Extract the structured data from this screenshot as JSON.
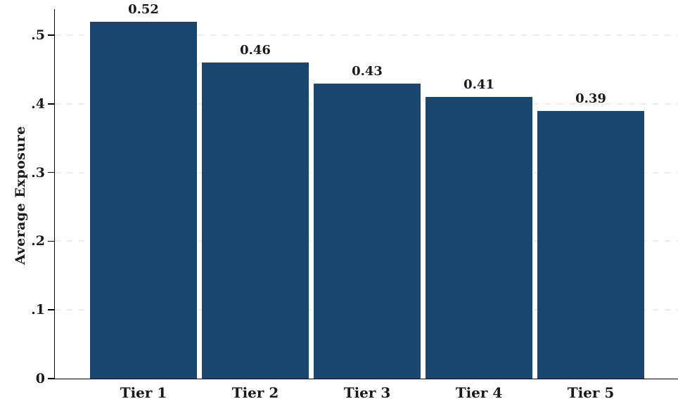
{
  "chart_data": {
    "type": "bar",
    "title": "",
    "categories": [
      "Tier 1",
      "Tier 2",
      "Tier 3",
      "Tier 4",
      "Tier 5"
    ],
    "values": [
      0.52,
      0.46,
      0.43,
      0.41,
      0.39
    ],
    "bar_value_labels": [
      "0.52",
      "0.46",
      "0.43",
      "0.41",
      "0.39"
    ],
    "xlabel": "",
    "ylabel": "Average Exposure",
    "ylim": [
      0,
      0.54
    ],
    "yticks": [
      {
        "value": 0.0,
        "label": "0"
      },
      {
        "value": 0.1,
        "label": ".1"
      },
      {
        "value": 0.2,
        "label": ".2"
      },
      {
        "value": 0.3,
        "label": ".3"
      },
      {
        "value": 0.4,
        "label": ".4"
      },
      {
        "value": 0.5,
        "label": ".5"
      }
    ],
    "grid": "horizontal-dashed",
    "legend": "none",
    "colors": {
      "bar_fill": "#1a476f",
      "gridline": "#ececec",
      "axis": "#000000",
      "text": "#1a1a1a",
      "background": "#ffffff"
    }
  }
}
